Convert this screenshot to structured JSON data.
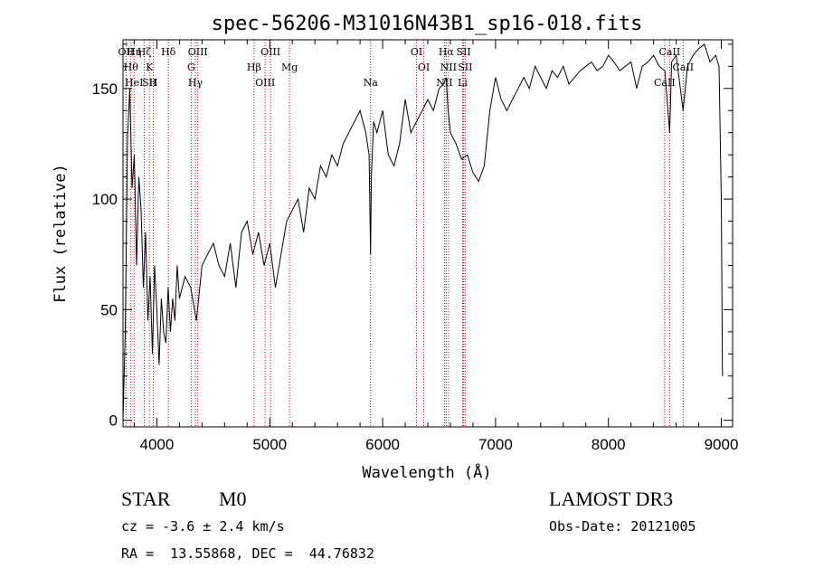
{
  "chart_data": {
    "type": "line",
    "title": "spec-56206-M31016N43B1_sp16-018.fits",
    "xlabel": "Wavelength (Å)",
    "ylabel": "Flux (relative)",
    "xlim": [
      3700,
      9100
    ],
    "ylim": [
      -3,
      172
    ],
    "xticks": [
      4000,
      5000,
      6000,
      7000,
      8000,
      9000
    ],
    "yticks": [
      0,
      50,
      100,
      150
    ],
    "line_color": "#000000",
    "marker_color": "#cc0000",
    "spectrum": {
      "x": [
        3700,
        3720,
        3740,
        3760,
        3780,
        3800,
        3820,
        3840,
        3860,
        3880,
        3900,
        3920,
        3940,
        3960,
        3980,
        4000,
        4020,
        4040,
        4060,
        4080,
        4100,
        4120,
        4140,
        4160,
        4180,
        4200,
        4250,
        4300,
        4350,
        4400,
        4450,
        4500,
        4550,
        4600,
        4650,
        4700,
        4750,
        4800,
        4850,
        4900,
        4950,
        5000,
        5050,
        5100,
        5150,
        5200,
        5250,
        5300,
        5350,
        5400,
        5450,
        5500,
        5550,
        5600,
        5650,
        5700,
        5750,
        5800,
        5850,
        5880,
        5893,
        5900,
        5920,
        5950,
        6000,
        6050,
        6100,
        6150,
        6200,
        6250,
        6300,
        6350,
        6400,
        6450,
        6500,
        6540,
        6563,
        6580,
        6600,
        6650,
        6700,
        6750,
        6800,
        6850,
        6900,
        6950,
        7000,
        7050,
        7100,
        7150,
        7200,
        7250,
        7300,
        7350,
        7400,
        7450,
        7500,
        7550,
        7600,
        7650,
        7700,
        7750,
        7800,
        7850,
        7900,
        7950,
        8000,
        8050,
        8100,
        8150,
        8200,
        8250,
        8300,
        8350,
        8400,
        8450,
        8500,
        8542,
        8560,
        8600,
        8662,
        8700,
        8750,
        8800,
        8850,
        8900,
        8950,
        8980,
        9000,
        9010
      ],
      "y": [
        0,
        40,
        128,
        150,
        105,
        120,
        70,
        110,
        95,
        60,
        85,
        45,
        65,
        30,
        70,
        50,
        25,
        55,
        40,
        35,
        60,
        40,
        55,
        45,
        70,
        55,
        65,
        60,
        45,
        70,
        75,
        80,
        70,
        65,
        80,
        60,
        85,
        90,
        75,
        85,
        70,
        80,
        60,
        75,
        90,
        95,
        100,
        85,
        105,
        100,
        115,
        110,
        120,
        115,
        125,
        130,
        135,
        140,
        130,
        120,
        75,
        110,
        135,
        130,
        140,
        120,
        115,
        125,
        145,
        130,
        135,
        140,
        145,
        140,
        150,
        152,
        155,
        140,
        130,
        125,
        118,
        120,
        112,
        108,
        115,
        140,
        155,
        145,
        140,
        145,
        150,
        155,
        150,
        160,
        155,
        150,
        158,
        155,
        160,
        152,
        155,
        158,
        160,
        162,
        158,
        160,
        165,
        162,
        158,
        160,
        162,
        150,
        160,
        162,
        165,
        160,
        158,
        130,
        162,
        165,
        140,
        160,
        165,
        168,
        170,
        162,
        165,
        160,
        100,
        20
      ]
    },
    "lines": [
      {
        "w": 3727,
        "lbl": [
          "OII"
        ]
      },
      {
        "w": 3770,
        "lbl": [
          "Hθ"
        ]
      },
      {
        "w": 3798,
        "lbl": [
          "HeI",
          "Hη"
        ]
      },
      {
        "w": 3889,
        "lbl": [
          "Hζ"
        ]
      },
      {
        "w": 3934,
        "lbl": [
          "K",
          "SII"
        ]
      },
      {
        "w": 3969,
        "lbl": [
          "H"
        ]
      },
      {
        "w": 4102,
        "lbl": [
          "Hδ"
        ]
      },
      {
        "w": 4304,
        "lbl": [
          "G"
        ]
      },
      {
        "w": 4341,
        "lbl": [
          "Hγ"
        ]
      },
      {
        "w": 4363,
        "lbl": [
          "OIII"
        ]
      },
      {
        "w": 4861,
        "lbl": [
          "Hβ"
        ]
      },
      {
        "w": 4959,
        "lbl": [
          "OIII"
        ]
      },
      {
        "w": 5007,
        "lbl": [
          "OIII"
        ]
      },
      {
        "w": 5175,
        "lbl": [
          "Mg"
        ]
      },
      {
        "w": 5893,
        "lbl": [
          "Na"
        ]
      },
      {
        "w": 6300,
        "lbl": [
          "OI"
        ]
      },
      {
        "w": 6364,
        "lbl": [
          "OI"
        ]
      },
      {
        "w": 6548,
        "lbl": [
          "NII"
        ]
      },
      {
        "w": 6563,
        "lbl": [
          "Hα"
        ]
      },
      {
        "w": 6583,
        "lbl": [
          "NII"
        ]
      },
      {
        "w": 6708,
        "lbl": [
          "Li"
        ]
      },
      {
        "w": 6717,
        "lbl": [
          "SII"
        ]
      },
      {
        "w": 6731,
        "lbl": [
          "SII"
        ]
      },
      {
        "w": 8498,
        "lbl": [
          "CaII"
        ]
      },
      {
        "w": 8542,
        "lbl": [
          "CaII"
        ]
      },
      {
        "w": 8662,
        "lbl": [
          "CaII"
        ]
      }
    ]
  },
  "info": {
    "object_class": "STAR",
    "subclass": "M0",
    "survey": "LAMOST DR3",
    "velocity": "cz = -3.6 ± 2.4 km/s",
    "obs_date": "Obs-Date: 20121005",
    "coords": "RA =  13.55868, DEC =  44.76832"
  }
}
